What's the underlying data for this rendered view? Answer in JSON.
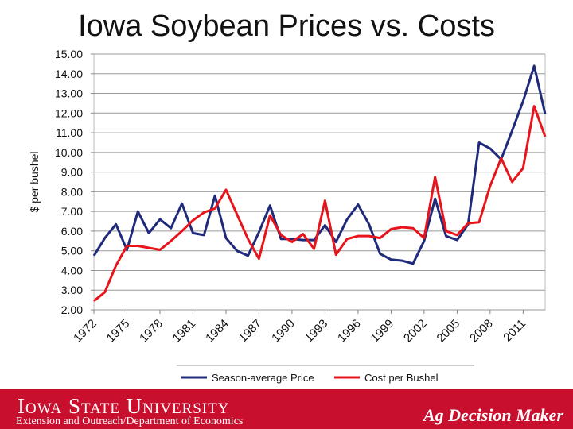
{
  "page": {
    "title": "Iowa Soybean Prices vs. Costs"
  },
  "footer": {
    "university": "Iowa State University",
    "department": "Extension and Outreach/Department of Economics",
    "brand": "Ag Decision Maker",
    "background_color": "#c8102e"
  },
  "chart_data": {
    "type": "line",
    "ylabel": "$ per bushel",
    "ylim": [
      2,
      15
    ],
    "yticks": [
      "2.00",
      "3.00",
      "4.00",
      "5.00",
      "6.00",
      "7.00",
      "8.00",
      "9.00",
      "10.00",
      "11.00",
      "12.00",
      "13.00",
      "14.00",
      "15.00"
    ],
    "xlim": [
      1972,
      2013
    ],
    "xticks": [
      "1972",
      "1975",
      "1978",
      "1981",
      "1984",
      "1987",
      "1990",
      "1993",
      "1996",
      "1999",
      "2002",
      "2005",
      "2008",
      "2011"
    ],
    "grid": "horizontal",
    "legend": "bottom",
    "x": [
      1972,
      1973,
      1974,
      1975,
      1976,
      1977,
      1978,
      1979,
      1980,
      1981,
      1982,
      1983,
      1984,
      1985,
      1986,
      1987,
      1988,
      1989,
      1990,
      1991,
      1992,
      1993,
      1994,
      1995,
      1996,
      1997,
      1998,
      1999,
      2000,
      2001,
      2002,
      2003,
      2004,
      2005,
      2006,
      2007,
      2008,
      2009,
      2010,
      2011,
      2012,
      2013
    ],
    "series": [
      {
        "name": "Season-average Price",
        "color": "#1f2a7a",
        "values": [
          4.75,
          5.65,
          6.35,
          5.05,
          7.0,
          5.9,
          6.6,
          6.15,
          7.4,
          5.9,
          5.8,
          7.8,
          5.65,
          5.0,
          4.75,
          5.95,
          7.3,
          5.6,
          5.6,
          5.55,
          5.55,
          6.3,
          5.45,
          6.6,
          7.35,
          6.35,
          4.85,
          4.55,
          4.5,
          4.35,
          5.5,
          7.65,
          5.75,
          5.55,
          6.35,
          10.5,
          10.2,
          9.65,
          11.1,
          12.6,
          14.4,
          11.95
        ]
      },
      {
        "name": "Cost per Bushel",
        "color": "#e8141b",
        "values": [
          2.45,
          2.9,
          4.25,
          5.25,
          5.25,
          5.15,
          5.05,
          5.5,
          6.0,
          6.55,
          6.95,
          7.15,
          8.1,
          6.85,
          5.6,
          4.6,
          6.8,
          5.8,
          5.45,
          5.85,
          5.1,
          7.55,
          4.8,
          5.6,
          5.75,
          5.75,
          5.65,
          6.1,
          6.2,
          6.15,
          5.65,
          8.75,
          6.0,
          5.8,
          6.4,
          6.45,
          8.3,
          9.7,
          8.5,
          9.2,
          12.35,
          10.8
        ]
      }
    ]
  }
}
